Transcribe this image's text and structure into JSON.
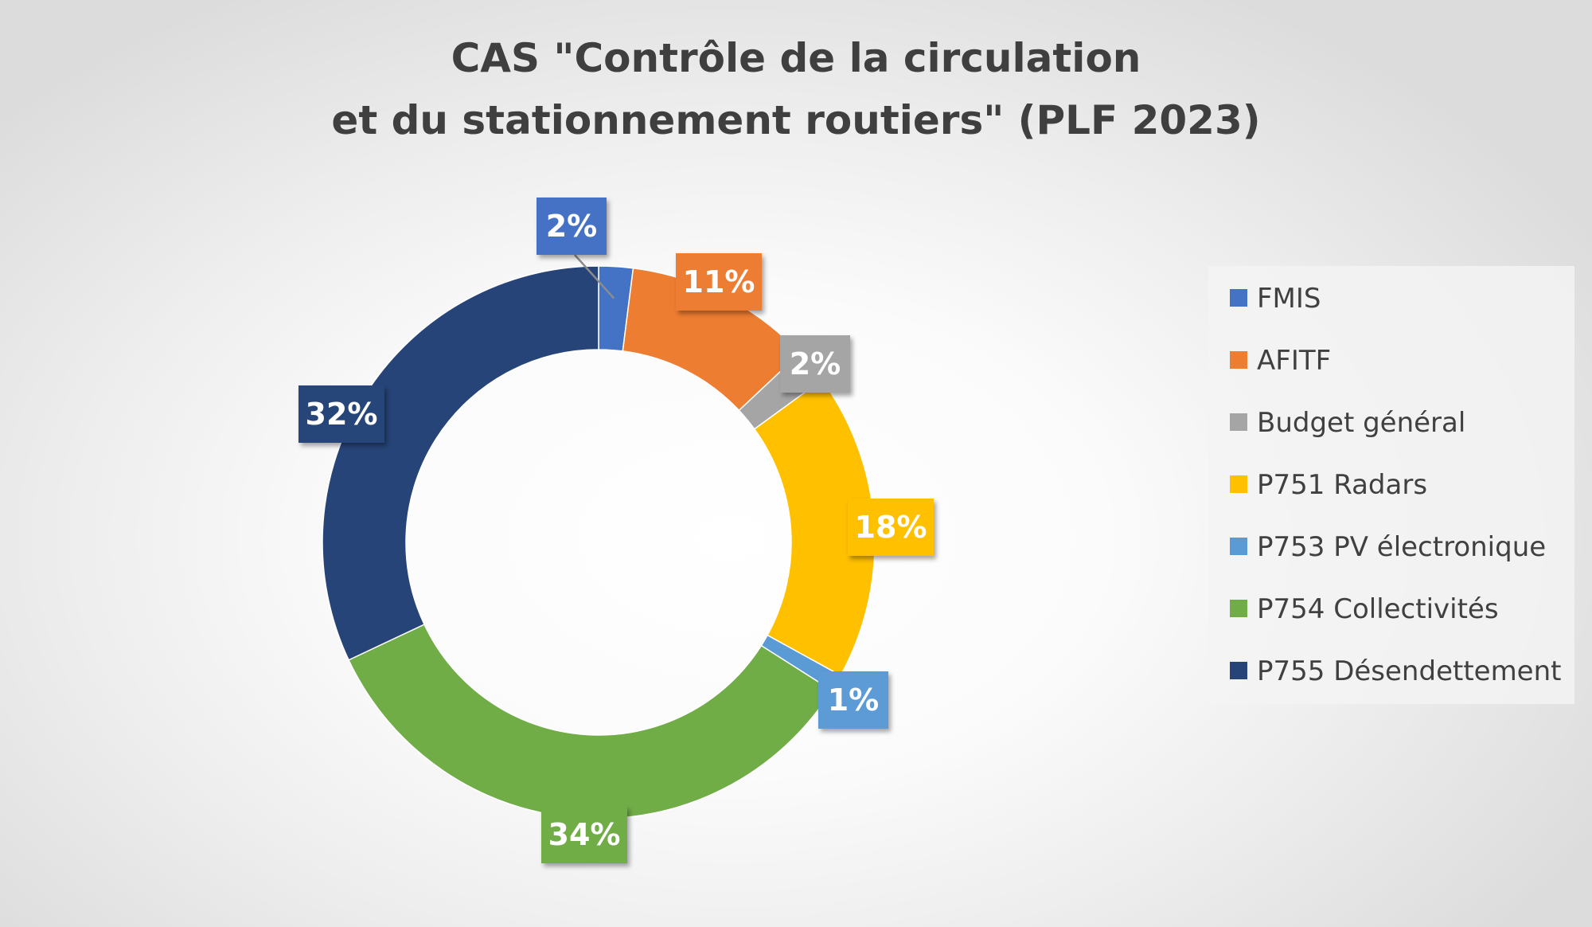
{
  "chart_data": {
    "type": "pie",
    "variant": "doughnut",
    "title": "CAS \"Contrôle de la circulation\net du stationnement routiers\" (PLF 2023)",
    "title_lines": [
      "CAS \"Contrôle de la circulation",
      "et du stationnement routiers\" (PLF 2023)"
    ],
    "categories": [
      "FMIS",
      "AFITF",
      "Budget général",
      "P751 Radars",
      "P753 PV électronique",
      "P754 Collectivités",
      "P755 Désendettement"
    ],
    "values": [
      2,
      11,
      2,
      18,
      1,
      34,
      32
    ],
    "labels": [
      "2%",
      "11%",
      "2%",
      "18%",
      "1%",
      "34%",
      "32%"
    ],
    "colors": [
      "#4472c4",
      "#ed7d31",
      "#a5a5a5",
      "#ffc000",
      "#5b9bd5",
      "#70ad47",
      "#264478"
    ],
    "unit": "%",
    "legend_position": "right",
    "data_labels": "outside-callout"
  }
}
